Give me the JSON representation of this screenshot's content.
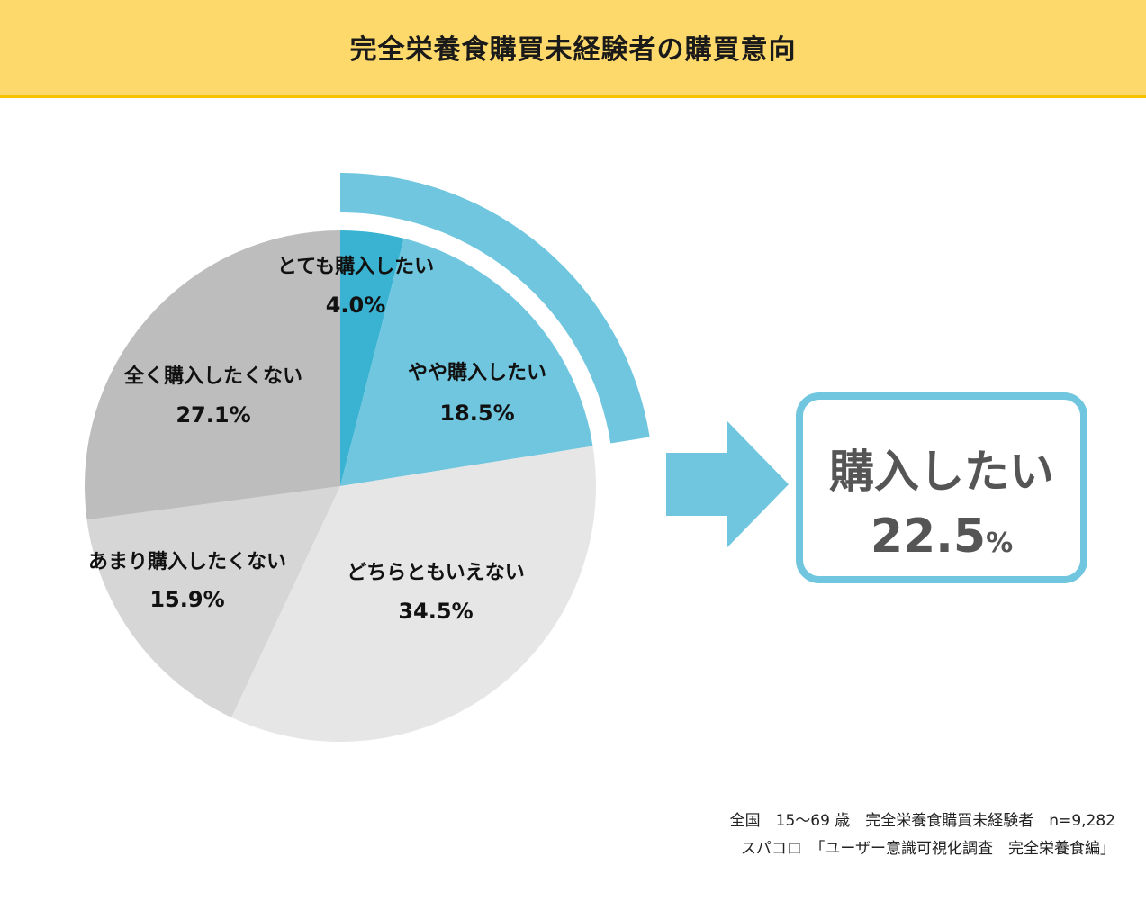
{
  "header": {
    "title": "完全栄養食購買未経験者の購買意向"
  },
  "chart_data": {
    "type": "pie",
    "slices": [
      {
        "name": "とても購入したい",
        "value": 4.0,
        "label": "4.0%",
        "color": "#3ab3d3"
      },
      {
        "name": "やや購入したい",
        "value": 18.5,
        "label": "18.5%",
        "color": "#6fc6de"
      },
      {
        "name": "どちらともいえない",
        "value": 34.5,
        "label": "34.5%",
        "color": "#e6e6e6"
      },
      {
        "name": "あまり購入したくない",
        "value": 15.9,
        "label": "15.9%",
        "color": "#d6d6d6"
      },
      {
        "name": "全く購入したくない",
        "value": 27.1,
        "label": "27.1%",
        "color": "#bdbdbd"
      }
    ],
    "start": "12 o'clock",
    "direction": "clockwise",
    "highlight": {
      "color": "#6fc6de",
      "covers": [
        "とても購入したい",
        "やや購入したい"
      ]
    }
  },
  "summary": {
    "label": "購入したい",
    "value": "22.5",
    "unit": "%"
  },
  "arrow_color": "#6fc6de",
  "footnote": {
    "line1": "全国　15～69 歳　完全栄養食購買未経験者　n=9,282",
    "line2": "スパコロ　「ユーザー意識可視化調査　完全栄養食編」"
  }
}
